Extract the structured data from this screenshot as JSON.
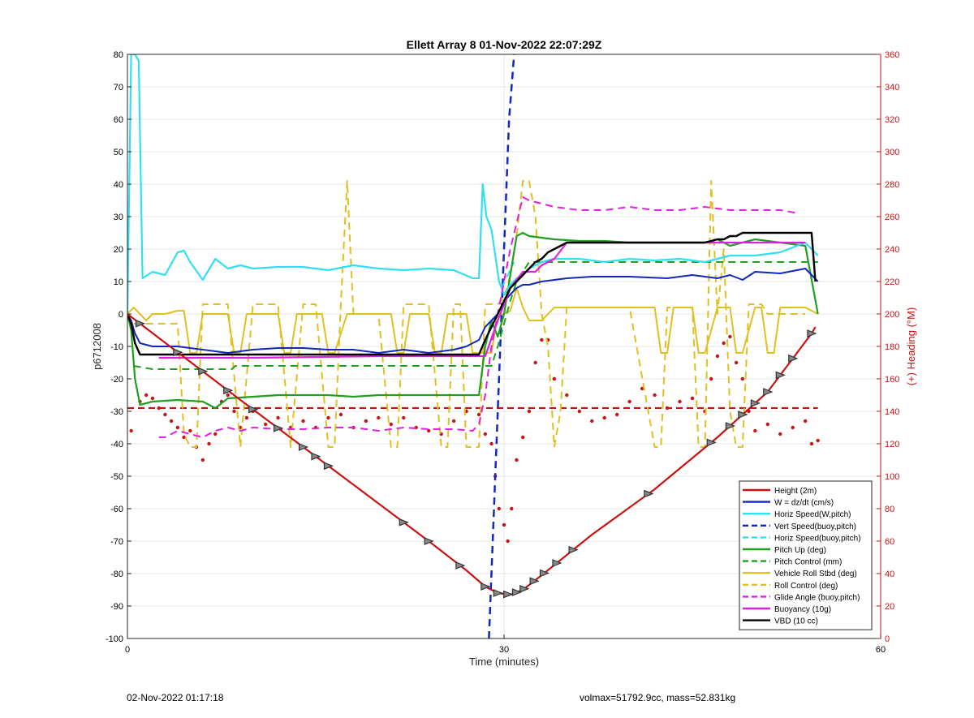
{
  "chart_data": {
    "type": "line",
    "title": "Ellett Array 8 01-Nov-2022 22:07:29Z",
    "xlabel": "Time (minutes)",
    "ylabel": "p6712008",
    "y2label": "(+) Heading (°M)",
    "xlim": [
      0,
      60
    ],
    "ylim": [
      -100,
      80
    ],
    "y2lim": [
      0,
      360
    ],
    "xticks": [
      0,
      30,
      60
    ],
    "yticks": [
      -100,
      -90,
      -80,
      -70,
      -60,
      -50,
      -40,
      -30,
      -20,
      -10,
      0,
      10,
      20,
      30,
      40,
      50,
      60,
      70,
      80
    ],
    "y2ticks": [
      0,
      20,
      40,
      60,
      80,
      100,
      120,
      140,
      160,
      180,
      200,
      220,
      240,
      260,
      280,
      300,
      320,
      340,
      360
    ],
    "grid": true,
    "legend_position": "bottom-right",
    "colors": {
      "left_axis": "#000000",
      "right_axis": "#cc1111",
      "grid": "#e6e6e6"
    },
    "series": [
      {
        "name": "Height (2m)",
        "color": "#cc1111",
        "style": "solid",
        "width": 2.2,
        "x": [
          0,
          4,
          9,
          14,
          19,
          24,
          27,
          28.5,
          29.5,
          30.5,
          31.5,
          33,
          37,
          42,
          47,
          51,
          54.5,
          54.8
        ],
        "y": [
          0,
          -11.8,
          -26.5,
          -41,
          -55.5,
          -70,
          -79,
          -84,
          -86,
          -86.5,
          -85,
          -80.5,
          -68,
          -54,
          -38,
          -24,
          -6,
          -4
        ]
      },
      {
        "name": "W = dz/dt (cm/s)",
        "color": "#1028c0",
        "style": "solid",
        "width": 2,
        "x": [
          0,
          0.3,
          0.6,
          1,
          2,
          4,
          6,
          8,
          10,
          12,
          14,
          16,
          18,
          20,
          22,
          24,
          26,
          27,
          27.5,
          28,
          28.5,
          29,
          29.5,
          30,
          30.5,
          31,
          31.5,
          32,
          33,
          35,
          37,
          40,
          43,
          45,
          46,
          47,
          48,
          49,
          50,
          52,
          54,
          55
        ],
        "y": [
          0,
          -2,
          -6,
          -9,
          -10,
          -10,
          -11,
          -12,
          -11,
          -10.5,
          -10.5,
          -11,
          -11,
          -12,
          -11,
          -12,
          -11,
          -10,
          -9,
          -8,
          -4,
          -2,
          0,
          4,
          6,
          8,
          9,
          9,
          10,
          11,
          11.5,
          11.5,
          11,
          12,
          11.5,
          11,
          12,
          10.5,
          13,
          12.5,
          14,
          10
        ]
      },
      {
        "name": "Horiz Speed(W,pitch)",
        "color": "#30e0f0",
        "style": "solid",
        "width": 2.2,
        "x": [
          0,
          0.3,
          0.6,
          0.9,
          1.2,
          2,
          3,
          4,
          4.5,
          5,
          6,
          7,
          8,
          9,
          10,
          12,
          14,
          16,
          18,
          20,
          22,
          24,
          26,
          27.5,
          28,
          28.3,
          28.6,
          29,
          29.3,
          29.6,
          30,
          30.5,
          31,
          31.5,
          32,
          33,
          34,
          36,
          38,
          40,
          42,
          44,
          46,
          48,
          50,
          52,
          54,
          55
        ],
        "y": [
          0,
          80,
          80,
          78,
          11,
          13,
          12,
          19,
          19.5,
          16,
          10.5,
          17,
          14,
          15,
          14,
          14.5,
          14.5,
          13.5,
          15,
          14,
          13.5,
          14,
          13.5,
          11,
          11,
          40,
          30,
          26,
          18,
          10,
          6,
          9,
          11,
          12,
          14,
          16,
          17,
          17,
          16,
          17,
          16.5,
          17,
          16,
          18,
          18,
          19,
          22,
          18
        ]
      },
      {
        "name": "Vert Speed(buoy,pitch)",
        "color": "#1028c0",
        "style": "dashed",
        "width": 2.5,
        "x": [
          28.8,
          29.2,
          29.6,
          30,
          30.4,
          30.8
        ],
        "y": [
          -100,
          -60,
          -20,
          20,
          60,
          80
        ]
      },
      {
        "name": "Horiz Speed(buoy,pitch)",
        "color": "#30e0f0",
        "style": "dashed",
        "width": 2,
        "x": [
          29.8,
          30.3,
          30.8
        ],
        "y": [
          8,
          12,
          16
        ]
      },
      {
        "name": "Pitch Up (deg)",
        "color": "#20a020",
        "style": "solid",
        "width": 2.2,
        "x": [
          0,
          0.3,
          0.6,
          1,
          2,
          4,
          6,
          7,
          8,
          10,
          12,
          14,
          16,
          18,
          20,
          22,
          24,
          26,
          27.5,
          28,
          28.5,
          29,
          29.5,
          30,
          30.5,
          31,
          31.5,
          32,
          34,
          36,
          38,
          40,
          42,
          44,
          46,
          47,
          48,
          50,
          52,
          54,
          55
        ],
        "y": [
          0,
          -5,
          -20,
          -28,
          -27,
          -26.5,
          -27,
          -29,
          -26,
          -25.5,
          -25,
          -25,
          -25,
          -25.5,
          -25,
          -25,
          -25,
          -25,
          -25,
          -25,
          -10,
          -2,
          -7,
          0,
          12,
          24,
          25,
          24,
          23,
          22.5,
          22.5,
          22,
          22,
          22,
          22,
          23,
          21,
          23,
          22,
          21,
          0
        ]
      },
      {
        "name": "Pitch Control (mm)",
        "color": "#20a020",
        "style": "dashed",
        "width": 2,
        "x": [
          0.5,
          2,
          4,
          6,
          8,
          8.3,
          8.6,
          9,
          11,
          14,
          17,
          20,
          23,
          26,
          27.5,
          28,
          28.5,
          29,
          29.5,
          30,
          30.5,
          31,
          32,
          34,
          36,
          40,
          44,
          48,
          52,
          55
        ],
        "y": [
          -16,
          -17,
          -17,
          -17,
          -17,
          -17,
          -16,
          -16,
          -16,
          -16,
          -16,
          -16,
          -16,
          -16,
          -16,
          -16,
          -16,
          -16,
          -10,
          -3,
          4,
          10,
          16,
          16,
          16,
          16,
          16,
          16,
          16,
          16
        ]
      },
      {
        "name": "Vehicle Roll Stbd (deg)",
        "color": "#e0c020",
        "style": "solid",
        "width": 2,
        "x": [
          0,
          0.5,
          1,
          1.5,
          2,
          3,
          4,
          4.5,
          5,
          5.5,
          6,
          6.5,
          8,
          8.5,
          9,
          9.5,
          10,
          10.5,
          12,
          12.5,
          13,
          13.5,
          15,
          15.5,
          16,
          16.5,
          17.5,
          18,
          19,
          20,
          21,
          21.5,
          22,
          22.5,
          24,
          24.5,
          25,
          25.5,
          27,
          27.5,
          28.5,
          29,
          29.5,
          30,
          30.5,
          31,
          31.5,
          32,
          33,
          34,
          35,
          36,
          38,
          40,
          42,
          42.5,
          43,
          43.5,
          44,
          45,
          45.5,
          46,
          47,
          48,
          48.5,
          49,
          50,
          50.5,
          51,
          51.5,
          52,
          53,
          54,
          55
        ],
        "y": [
          0,
          2,
          0,
          -2,
          0,
          0,
          1,
          1,
          -12,
          -12,
          0,
          0,
          0,
          -12,
          -12,
          0,
          0,
          0,
          0,
          -12,
          -12,
          0,
          0,
          0,
          -12,
          -12,
          0,
          0,
          0,
          0,
          0,
          -12,
          -12,
          0,
          0,
          -12,
          -12,
          0,
          0,
          -12,
          -12,
          -12,
          0,
          0,
          1,
          8,
          2,
          -2,
          -2,
          2,
          2,
          2,
          2,
          2,
          2,
          -12,
          -12,
          2,
          2,
          2,
          -12,
          -12,
          2,
          2,
          -12,
          -12,
          2,
          2,
          -12,
          -12,
          2,
          2,
          2,
          0
        ]
      },
      {
        "name": "Roll Control (deg)",
        "color": "#e0c020",
        "style": "dashed",
        "width": 2,
        "x": [
          0.5,
          1.5,
          3,
          4,
          4.5,
          5,
          5.5,
          6,
          6.5,
          7,
          8,
          9,
          10,
          10.5,
          11,
          12,
          13,
          14,
          15,
          16,
          16.5,
          17,
          17.5,
          18,
          19,
          20,
          21,
          21.5,
          22,
          22.5,
          23,
          24,
          25,
          25.5,
          26,
          26.5,
          27,
          28,
          28.5,
          29,
          29.5,
          30,
          30.5,
          31,
          31.5,
          32,
          32.5,
          33,
          33.5,
          34,
          34.5,
          35,
          36,
          38,
          40,
          42,
          42.5,
          43,
          44,
          45,
          45.5,
          46,
          46.5,
          47,
          47.5,
          48,
          48.5,
          49,
          49.5,
          50,
          50.5,
          51,
          52,
          54
        ],
        "y": [
          -3,
          -3,
          -3,
          -3,
          -37,
          -41,
          -41,
          3,
          3,
          3,
          3,
          -41,
          3,
          3,
          3,
          3,
          -41,
          3,
          3,
          -41,
          -41,
          3,
          41,
          0,
          0,
          0,
          -41,
          -41,
          3,
          3,
          3,
          3,
          -41,
          -41,
          3,
          3,
          -41,
          -41,
          3,
          3,
          3,
          5,
          12,
          24,
          41,
          41,
          30,
          0,
          -10,
          -41,
          -30,
          2,
          2,
          2,
          2,
          -41,
          -41,
          2,
          2,
          2,
          -41,
          -41,
          41,
          0,
          20,
          -30,
          -41,
          -41,
          3,
          3,
          3,
          0,
          0,
          0
        ]
      },
      {
        "name": "Glide Angle (buoy,pitch)",
        "color": "#e020e0",
        "style": "dashed",
        "width": 2,
        "x": [
          2.5,
          3,
          4,
          5,
          6,
          7,
          8,
          9,
          10,
          12,
          14,
          16,
          18,
          20,
          22,
          24,
          26,
          27.5,
          28,
          28.5,
          29,
          29.5,
          30,
          30.5,
          31,
          31.5,
          32,
          33,
          34,
          36,
          38,
          40,
          42,
          44,
          46,
          48,
          50,
          52,
          53.5
        ],
        "y": [
          -38,
          -38,
          -36,
          -37,
          -38,
          -36,
          -35,
          -36,
          -35,
          -35.5,
          -35.5,
          -35,
          -35,
          -36,
          -35,
          -35.5,
          -35.5,
          -36,
          -34,
          -25,
          -10,
          0,
          10,
          20,
          28,
          36,
          35,
          34,
          33,
          32,
          32,
          33,
          32,
          32,
          33,
          32,
          32,
          32,
          31
        ]
      },
      {
        "name": "Buoyancy (10g)",
        "color": "#e020e0",
        "style": "solid",
        "width": 2.2,
        "x": [
          2.5,
          10,
          20,
          25,
          27,
          28.5,
          29.5,
          30.5,
          31.5,
          32.5,
          33,
          34,
          35,
          40,
          45,
          47,
          48,
          50,
          52,
          54
        ],
        "y": [
          -13.5,
          -13.5,
          -13,
          -13,
          -13,
          -13,
          -2,
          8,
          13,
          13,
          15,
          17,
          22,
          22,
          22,
          22,
          22,
          22,
          22,
          22
        ]
      },
      {
        "name": "VBD (10 cc)",
        "color": "#000000",
        "style": "solid",
        "width": 2.4,
        "x": [
          0,
          0.3,
          0.6,
          1,
          4,
          10,
          20,
          28,
          28.5,
          29,
          29.5,
          30,
          30.5,
          31,
          31.5,
          32,
          32.5,
          33,
          33.5,
          34,
          34.5,
          35,
          40,
          46,
          47,
          47.5,
          48,
          48.5,
          49,
          50,
          52,
          54.5,
          54.8
        ],
        "y": [
          0,
          -3,
          -9,
          -12.5,
          -12.5,
          -12.5,
          -12.5,
          -12.5,
          -8,
          -4,
          0,
          4,
          8,
          10,
          12,
          14,
          16,
          17,
          19,
          20,
          21,
          22,
          22,
          22,
          23,
          23,
          24,
          24,
          25,
          25,
          25,
          25,
          10
        ]
      }
    ],
    "heading_reference": {
      "color": "#cc1111",
      "style": "dashed",
      "y2": 142,
      "x": [
        0,
        55
      ]
    },
    "heading_dots": {
      "color": "#cc1111",
      "x": [
        0.3,
        1,
        1.5,
        2,
        2.5,
        3,
        3.5,
        4,
        4.5,
        5,
        5.5,
        6,
        6.5,
        7,
        7.5,
        8,
        8.5,
        9,
        9.5,
        10,
        11,
        12,
        13,
        14,
        15,
        16,
        17,
        18,
        19,
        20,
        21,
        22,
        23,
        24,
        25,
        26,
        27,
        28,
        28.5,
        29,
        29.3,
        29.6,
        30,
        30.3,
        30.6,
        31,
        31.5,
        32,
        32.5,
        33,
        33.5,
        34,
        35,
        36,
        37,
        38,
        39,
        40,
        41,
        42,
        43,
        44,
        45,
        46,
        46.5,
        47,
        47.5,
        48,
        48.5,
        49,
        49.5,
        50,
        51,
        52,
        53,
        54,
        54.5,
        55
      ],
      "y2": [
        128,
        146,
        150,
        148,
        142,
        138,
        134,
        130,
        124,
        128,
        118,
        110,
        120,
        126,
        146,
        150,
        140,
        130,
        136,
        140,
        132,
        136,
        130,
        134,
        130,
        136,
        138,
        130,
        134,
        136,
        132,
        136,
        130,
        128,
        126,
        134,
        140,
        138,
        126,
        120,
        100,
        80,
        70,
        60,
        80,
        110,
        124,
        140,
        170,
        184,
        184,
        160,
        150,
        140,
        134,
        136,
        138,
        146,
        154,
        150,
        142,
        146,
        148,
        140,
        160,
        174,
        182,
        186,
        170,
        160,
        140,
        128,
        132,
        126,
        130,
        134,
        120,
        122
      ]
    },
    "height_markers": {
      "color": "#333333",
      "x": [
        1,
        4,
        6,
        8,
        10,
        12,
        14,
        15,
        16,
        22,
        24,
        26.5,
        28.5,
        29.5,
        30.3,
        31,
        31.6,
        32.4,
        33.2,
        34.2,
        35.5,
        41.5,
        46.5,
        48,
        49,
        50,
        51,
        52,
        53,
        54.5
      ]
    },
    "footer_left": "02-Nov-2022 01:17:18",
    "footer_right": "volmax=51792.9cc, mass=52.831kg"
  }
}
